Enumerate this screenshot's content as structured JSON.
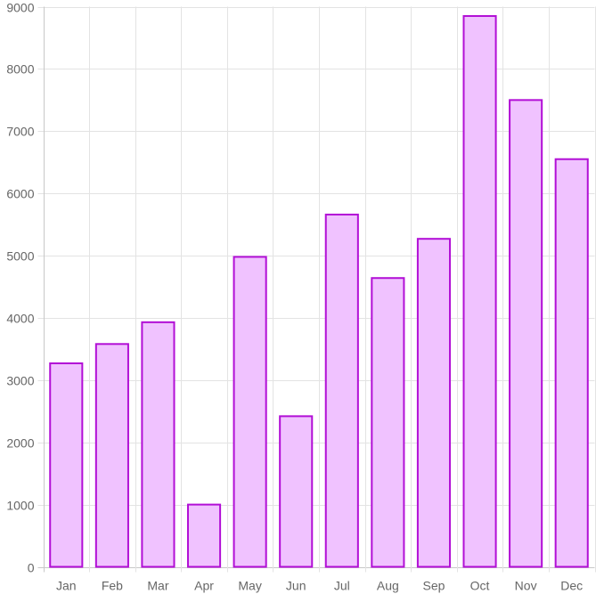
{
  "chart_data": {
    "type": "bar",
    "categories": [
      "Jan",
      "Feb",
      "Mar",
      "Apr",
      "May",
      "Jun",
      "Jul",
      "Aug",
      "Sep",
      "Oct",
      "Nov",
      "Dec"
    ],
    "values": [
      3270,
      3580,
      3930,
      1000,
      4980,
      2420,
      5660,
      4640,
      5270,
      8850,
      7500,
      6550
    ],
    "y_ticks": [
      "0",
      "1000",
      "2000",
      "3000",
      "4000",
      "5000",
      "6000",
      "7000",
      "8000",
      "9000"
    ],
    "ylim": [
      0,
      9000
    ],
    "grid": true,
    "legend": "none",
    "title": "",
    "xlabel": "",
    "ylabel": "",
    "colors": {
      "bar_fill": "#f0c2ff",
      "bar_stroke": "#b20fd6",
      "grid": "#e3e3e3",
      "axis": "#c8c8c8",
      "tick_text": "#666666"
    }
  }
}
